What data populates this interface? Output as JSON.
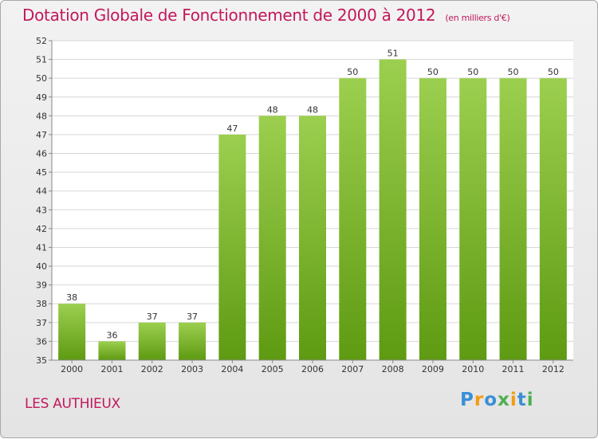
{
  "title": "Dotation Globale de Fonctionnement de 2000 à 2012",
  "unit_label": "(en milliers d'€)",
  "commune": "LES AUTHIEUX",
  "logo": {
    "letters": [
      {
        "char": "P",
        "color": "#3a8fd6"
      },
      {
        "char": "r",
        "color": "#f39c12"
      },
      {
        "char": "o",
        "color": "#3a8fd6"
      },
      {
        "char": "x",
        "color": "#4caf50"
      },
      {
        "char": "i",
        "color": "#f39c12"
      },
      {
        "char": "t",
        "color": "#3a8fd6"
      },
      {
        "char": "i",
        "color": "#4caf50"
      }
    ]
  },
  "colors": {
    "accent": "#c2185b",
    "bar_top": "#9ccf4f",
    "bar_bottom": "#5e9a12",
    "grid": "#d6d6d6",
    "axis": "#888888"
  },
  "chart_data": {
    "type": "bar",
    "categories": [
      "2000",
      "2001",
      "2002",
      "2003",
      "2004",
      "2005",
      "2006",
      "2007",
      "2008",
      "2009",
      "2010",
      "2011",
      "2012"
    ],
    "values": [
      38,
      36,
      37,
      37,
      47,
      48,
      48,
      50,
      51,
      50,
      50,
      50,
      50
    ],
    "ylim": [
      35,
      52
    ],
    "yticks": [
      35,
      36,
      37,
      38,
      39,
      40,
      41,
      42,
      43,
      44,
      45,
      46,
      47,
      48,
      49,
      50,
      51,
      52
    ],
    "grid": true
  }
}
